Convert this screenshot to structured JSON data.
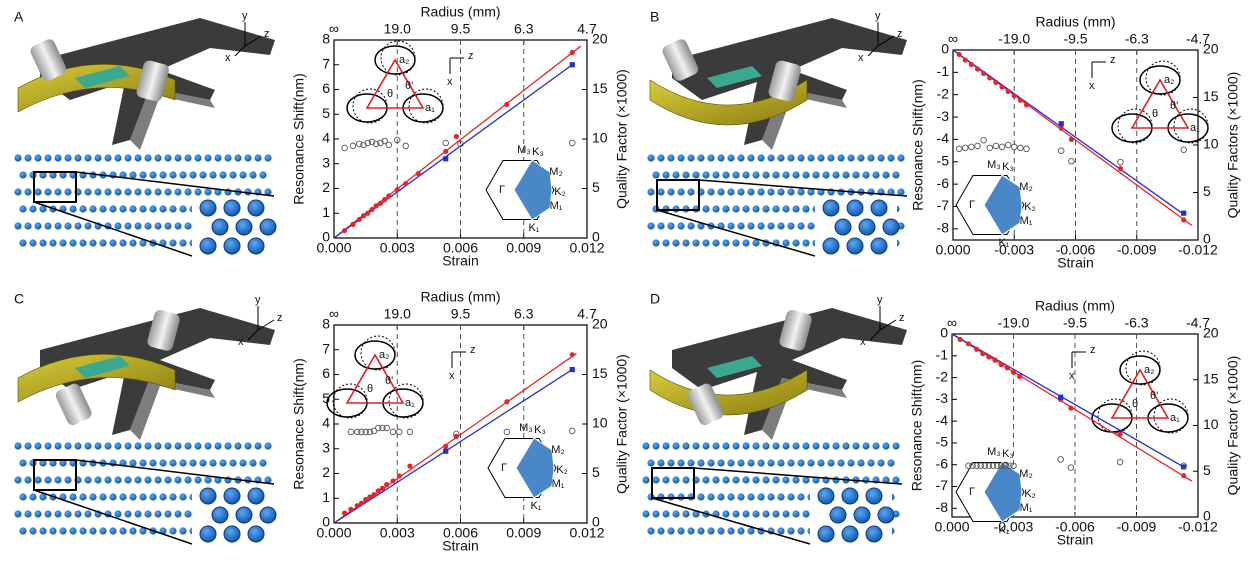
{
  "panels": [
    {
      "label": "A",
      "axes": [
        "y",
        "z",
        "x"
      ]
    },
    {
      "label": "B",
      "axes": [
        "y",
        "z",
        "x"
      ]
    },
    {
      "label": "C",
      "axes": [
        "y",
        "z",
        "x"
      ]
    },
    {
      "label": "D",
      "axes": [
        "y",
        "z",
        "x"
      ]
    }
  ],
  "chart_data": [
    {
      "type": "scatter",
      "xlabel": "Strain",
      "ylabel": "Resonance Shift(nm)",
      "y2label": "Quality Factor (×1000)",
      "x2label": "Radius (mm)",
      "x2ticks": [
        "∞",
        "19.0",
        "9.5",
        "6.3",
        "4.7"
      ],
      "xlim": [
        0,
        0.012
      ],
      "xticks": [
        {
          "value": 0,
          "label": "0.000"
        },
        {
          "value": 0.003,
          "label": "0.003"
        },
        {
          "value": 0.006,
          "label": "0.006"
        },
        {
          "value": 0.009,
          "label": "0.009"
        },
        {
          "value": 0.012,
          "label": "0.012"
        }
      ],
      "ylim": [
        0,
        8
      ],
      "yticks": [
        0,
        1,
        2,
        3,
        4,
        5,
        6,
        7,
        8
      ],
      "y2lim": [
        0,
        20
      ],
      "y2ticks": [
        0,
        5,
        10,
        15,
        20
      ],
      "grid": "x-dashed",
      "inset": {
        "coord": [
          "z",
          "x"
        ],
        "vectors": [
          "a₂",
          "θ'",
          "a₁",
          "θ"
        ],
        "bz": [
          "M₃",
          "K₃",
          "M₂",
          "K₂",
          "Γ",
          "M₁",
          "K₁"
        ]
      },
      "series": [
        {
          "color": "#e8242a",
          "marker": "line",
          "x": [
            0,
            0.0117
          ],
          "values": [
            0,
            7.75
          ]
        },
        {
          "color": "#1f2fd6",
          "marker": "line",
          "x": [
            0,
            0.0113
          ],
          "values": [
            0,
            7.0
          ]
        },
        {
          "color": "#e8242a",
          "marker": "dot",
          "x": [
            0.0005,
            0.0009,
            0.0012,
            0.0014,
            0.0016,
            0.0018,
            0.002,
            0.0022,
            0.0024,
            0.0026,
            0.003,
            0.0034,
            0.004,
            0.0053,
            0.0058,
            0.0082,
            0.0113
          ],
          "values": [
            0.3,
            0.55,
            0.75,
            0.9,
            1.0,
            1.15,
            1.3,
            1.4,
            1.55,
            1.7,
            1.95,
            2.2,
            2.6,
            3.5,
            4.1,
            5.4,
            7.5
          ]
        },
        {
          "color": "#1f2fd6",
          "marker": "square",
          "x": [
            0.0053,
            0.0113
          ],
          "values": [
            3.2,
            7.0
          ]
        },
        {
          "color": "#555555",
          "marker": "open-circle",
          "axis": "y2",
          "x": [
            0.0005,
            0.0009,
            0.0012,
            0.0014,
            0.0016,
            0.0018,
            0.002,
            0.0022,
            0.0024,
            0.0026,
            0.003,
            0.0034,
            0.0053,
            0.006,
            0.0113
          ],
          "values": [
            9.1,
            9.3,
            9.5,
            9.4,
            9.6,
            9.7,
            9.5,
            9.6,
            9.8,
            9.4,
            9.9,
            9.3,
            9.6,
            9.5,
            9.6
          ]
        }
      ]
    },
    {
      "type": "scatter",
      "xlabel": "Strain",
      "ylabel": "Resonance Shift(nm)",
      "y2label": "Quality Factors (×1000)",
      "x2label": "Radius (mm)",
      "x2ticks": [
        "∞",
        "-19.0",
        "-9.5",
        "-6.3",
        "-4.7"
      ],
      "xlim": [
        0,
        -0.012
      ],
      "xticks": [
        {
          "value": 0,
          "label": "0.000"
        },
        {
          "value": -0.003,
          "label": "-0.003"
        },
        {
          "value": -0.006,
          "label": "-0.006"
        },
        {
          "value": -0.009,
          "label": "-0.009"
        },
        {
          "value": -0.012,
          "label": "-0.012"
        }
      ],
      "ylim": [
        -8.5,
        0
      ],
      "yticks": [
        0,
        -1,
        -2,
        -3,
        -4,
        -5,
        -6,
        -7,
        -8
      ],
      "y2lim": [
        0,
        20
      ],
      "y2ticks": [
        0,
        5,
        10,
        15,
        20
      ],
      "grid": "x-dashed",
      "inset": {
        "coord": [
          "z",
          "x"
        ],
        "vectors": [
          "a₂",
          "θ'",
          "a₁",
          "θ"
        ],
        "bz": [
          "M₃",
          "K₃",
          "M₂",
          "K₂",
          "Γ",
          "M₁",
          "K₁"
        ]
      },
      "series": [
        {
          "color": "#e8242a",
          "marker": "line",
          "x": [
            0,
            -0.0117
          ],
          "values": [
            0,
            -7.85
          ]
        },
        {
          "color": "#1f2fd6",
          "marker": "line",
          "x": [
            0,
            -0.0113
          ],
          "values": [
            0,
            -7.35
          ]
        },
        {
          "color": "#e8242a",
          "marker": "dot",
          "x": [
            -0.0003,
            -0.0006,
            -0.0009,
            -0.0012,
            -0.0015,
            -0.0018,
            -0.0021,
            -0.0024,
            -0.0027,
            -0.003,
            -0.0033,
            -0.0036,
            -0.0053,
            -0.0058,
            -0.0082,
            -0.0113
          ],
          "values": [
            -0.2,
            -0.45,
            -0.65,
            -0.85,
            -1.05,
            -1.25,
            -1.45,
            -1.65,
            -1.85,
            -2.05,
            -2.25,
            -2.45,
            -3.5,
            -4.0,
            -5.3,
            -7.6
          ]
        },
        {
          "color": "#1f2fd6",
          "marker": "square",
          "x": [
            -0.0053,
            -0.0113
          ],
          "values": [
            -3.3,
            -7.3
          ]
        },
        {
          "color": "#555555",
          "marker": "open-circle",
          "axis": "y2",
          "x": [
            -0.0003,
            -0.0006,
            -0.0009,
            -0.0012,
            -0.0015,
            -0.0018,
            -0.0021,
            -0.0024,
            -0.0027,
            -0.003,
            -0.0033,
            -0.0036,
            -0.0053,
            -0.0058,
            -0.0082,
            -0.0113
          ],
          "values": [
            9.6,
            9.7,
            9.8,
            9.9,
            10.5,
            9.7,
            9.9,
            9.8,
            10.0,
            9.8,
            9.7,
            9.6,
            9.4,
            8.3,
            8.2,
            9.5
          ]
        }
      ]
    },
    {
      "type": "scatter",
      "xlabel": "Strain",
      "ylabel": "Resonance Shift(nm)",
      "y2label": "Quality Factor (×1000)",
      "x2label": "Radius (mm)",
      "x2ticks": [
        "∞",
        "19.0",
        "9.5",
        "6.3",
        "4.7"
      ],
      "xlim": [
        0,
        0.012
      ],
      "xticks": [
        {
          "value": 0,
          "label": "0.000"
        },
        {
          "value": 0.003,
          "label": "0.003"
        },
        {
          "value": 0.006,
          "label": "0.006"
        },
        {
          "value": 0.009,
          "label": "0.009"
        },
        {
          "value": 0.012,
          "label": "0.012"
        }
      ],
      "ylim": [
        0,
        8
      ],
      "yticks": [
        0,
        1,
        2,
        3,
        4,
        5,
        6,
        7,
        8
      ],
      "y2lim": [
        0,
        20
      ],
      "y2ticks": [
        0,
        5,
        10,
        15,
        20
      ],
      "grid": "x-dashed",
      "inset": {
        "coord": [
          "z",
          "x"
        ],
        "vectors": [
          "a₂",
          "θ'",
          "a₁",
          "θ"
        ],
        "bz": [
          "M₃",
          "K₃",
          "M₂",
          "K₂",
          "Γ",
          "M₁",
          "K₁"
        ]
      },
      "series": [
        {
          "color": "#e8242a",
          "marker": "line",
          "x": [
            0,
            0.0115
          ],
          "values": [
            0,
            6.85
          ]
        },
        {
          "color": "#1f2fd6",
          "marker": "line",
          "x": [
            0,
            0.0113
          ],
          "values": [
            0,
            6.2
          ]
        },
        {
          "color": "#e8242a",
          "marker": "dot",
          "x": [
            0.0005,
            0.0008,
            0.0011,
            0.0013,
            0.0015,
            0.0017,
            0.0019,
            0.0021,
            0.0023,
            0.0025,
            0.0028,
            0.0031,
            0.0036,
            0.0053,
            0.0058,
            0.0082,
            0.0113
          ],
          "values": [
            0.4,
            0.55,
            0.7,
            0.8,
            0.95,
            1.05,
            1.15,
            1.3,
            1.4,
            1.55,
            1.7,
            1.9,
            2.3,
            3.1,
            3.5,
            4.9,
            6.8
          ]
        },
        {
          "color": "#1f2fd6",
          "marker": "square",
          "x": [
            0.0053,
            0.0113
          ],
          "values": [
            2.9,
            6.2
          ]
        },
        {
          "color": "#555555",
          "marker": "open-circle",
          "axis": "y2",
          "x": [
            0.0008,
            0.0011,
            0.0013,
            0.0015,
            0.0017,
            0.0019,
            0.0021,
            0.0023,
            0.0025,
            0.0028,
            0.0031,
            0.0036,
            0.0058,
            0.0082,
            0.0113
          ],
          "values": [
            9.2,
            9.2,
            9.2,
            9.2,
            9.2,
            9.3,
            9.6,
            9.6,
            9.6,
            9.2,
            9.2,
            9.2,
            9.0,
            9.2,
            9.3
          ]
        }
      ]
    },
    {
      "type": "scatter",
      "xlabel": "Strain",
      "ylabel": "Resonance Shift(nm)",
      "y2label": "Quality Factor (×1000)",
      "x2label": "Radius (mm)",
      "x2ticks": [
        "∞",
        "-19.0",
        "-9.5",
        "-6.3",
        "-4.7"
      ],
      "xlim": [
        0,
        -0.012
      ],
      "xticks": [
        {
          "value": 0,
          "label": "0.000"
        },
        {
          "value": -0.003,
          "label": "-0.003"
        },
        {
          "value": -0.006,
          "label": "-0.006"
        },
        {
          "value": -0.009,
          "label": "-0.009"
        },
        {
          "value": -0.012,
          "label": "-0.012"
        }
      ],
      "ylim": [
        -8.4,
        0
      ],
      "yticks": [
        0,
        -1,
        -2,
        -3,
        -4,
        -5,
        -6,
        -7,
        -8
      ],
      "y2lim": [
        0,
        20
      ],
      "y2ticks": [
        0,
        5,
        10,
        15,
        20
      ],
      "grid": "x-dashed",
      "inset": {
        "coord": [
          "z",
          "x"
        ],
        "vectors": [
          "a₂",
          "θ'",
          "a₁",
          "θ"
        ],
        "bz": [
          "M₃",
          "K₃",
          "M₂",
          "K₂",
          "Γ",
          "M₁",
          "K₁"
        ]
      },
      "series": [
        {
          "color": "#e8242a",
          "marker": "line",
          "x": [
            0,
            -0.0117
          ],
          "values": [
            0,
            -6.75
          ]
        },
        {
          "color": "#1f2fd6",
          "marker": "line",
          "x": [
            0,
            -0.0113
          ],
          "values": [
            0,
            -6.1
          ]
        },
        {
          "color": "#e8242a",
          "marker": "dot",
          "x": [
            -0.0004,
            -0.0008,
            -0.0012,
            -0.0015,
            -0.0018,
            -0.0021,
            -0.0024,
            -0.0027,
            -0.003,
            -0.0033,
            -0.0053,
            -0.0058,
            -0.0082,
            -0.0113
          ],
          "values": [
            -0.25,
            -0.45,
            -0.7,
            -0.9,
            -1.05,
            -1.2,
            -1.4,
            -1.55,
            -1.75,
            -1.95,
            -3.0,
            -3.4,
            -4.6,
            -6.5
          ]
        },
        {
          "color": "#1f2fd6",
          "marker": "square",
          "x": [
            -0.0053,
            -0.0113
          ],
          "values": [
            -2.9,
            -6.1
          ]
        },
        {
          "color": "#555555",
          "marker": "open-circle",
          "axis": "y2",
          "x": [
            -0.0008,
            -0.001,
            -0.0012,
            -0.0014,
            -0.0016,
            -0.0018,
            -0.002,
            -0.0022,
            -0.0024,
            -0.0026,
            -0.0028,
            -0.003,
            -0.0053,
            -0.0058,
            -0.0082,
            -0.0113
          ],
          "values": [
            5.6,
            5.6,
            5.6,
            5.6,
            5.6,
            5.6,
            5.6,
            5.6,
            5.6,
            5.6,
            5.6,
            5.6,
            6.3,
            5.4,
            6.0,
            5.6
          ]
        }
      ]
    }
  ]
}
